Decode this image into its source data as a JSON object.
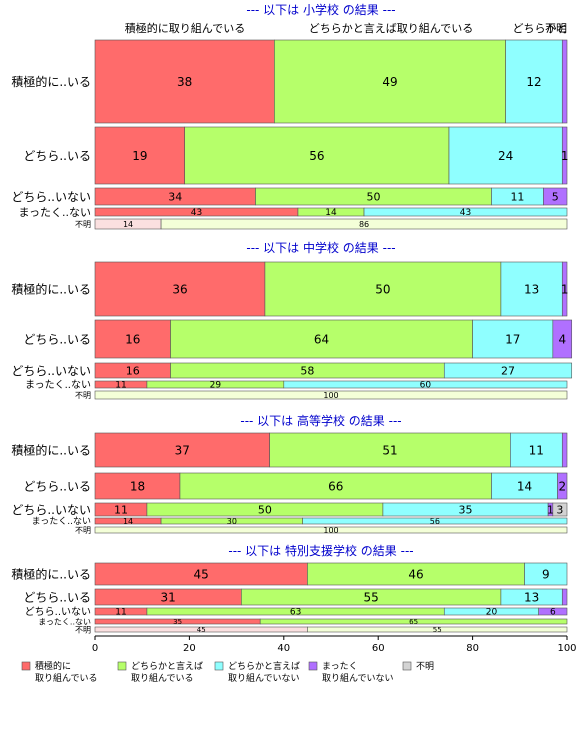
{
  "chart_data": {
    "type": "bar",
    "orientation": "horizontal",
    "stacked": "percent",
    "xlim": [
      0,
      100
    ],
    "xticks": [
      "0",
      "20",
      "40",
      "60",
      "80",
      "100"
    ],
    "column_headers": [
      "積極的に取り組んでいる",
      "どちらかと言えば取り組んでいる",
      "どちらかと",
      "不明"
    ],
    "legend": {
      "position": "bottom-left",
      "items": [
        {
          "label_lines": [
            "積極的に",
            "取り組んでいる"
          ],
          "color": "#ff6b6b"
        },
        {
          "label_lines": [
            "どちらかと言えば",
            "取り組んでいる"
          ],
          "color": "#b6ff6a"
        },
        {
          "label_lines": [
            "どちらかと言えば",
            "取り組んでいない"
          ],
          "color": "#8fffff"
        },
        {
          "label_lines": [
            "まったく",
            "取り組んでいない"
          ],
          "color": "#b070ff"
        },
        {
          "label_lines": [
            "不明"
          ],
          "color": "#d3d3d3"
        }
      ]
    },
    "panels": [
      {
        "title": "--- 以下は 小学校 の結果 ---",
        "rows": [
          {
            "label": "積極的に..いる",
            "values": [
              38,
              49,
              12,
              1,
              0
            ],
            "labels": [
              "38",
              "49",
              "12",
              "",
              ""
            ]
          },
          {
            "label": "どちら..いる",
            "values": [
              19,
              56,
              24,
              1,
              0
            ],
            "labels": [
              "19",
              "56",
              "24",
              "1",
              ""
            ]
          },
          {
            "label": "どちら..いない",
            "values": [
              34,
              50,
              11,
              5,
              0
            ],
            "labels": [
              "34",
              "50",
              "11",
              "5",
              ""
            ]
          },
          {
            "label": "まったく..ない",
            "values": [
              43,
              14,
              43,
              0,
              0
            ],
            "labels": [
              "43",
              "14",
              "43",
              "",
              ""
            ]
          },
          {
            "label": "不明",
            "values": [
              14,
              86,
              0,
              0,
              0
            ],
            "labels": [
              "14",
              "86",
              "",
              "",
              ""
            ],
            "pale": true
          }
        ]
      },
      {
        "title": "--- 以下は 中学校 の結果 ---",
        "rows": [
          {
            "label": "積極的に..いる",
            "values": [
              36,
              50,
              13,
              1,
              0
            ],
            "labels": [
              "36",
              "50",
              "13",
              "1",
              ""
            ]
          },
          {
            "label": "どちら..いる",
            "values": [
              16,
              64,
              17,
              4,
              0
            ],
            "labels": [
              "16",
              "64",
              "17",
              "4",
              ""
            ]
          },
          {
            "label": "どちら..いない",
            "values": [
              16,
              58,
              27,
              0,
              0
            ],
            "labels": [
              "16",
              "58",
              "27",
              "",
              ""
            ]
          },
          {
            "label": "まったく..ない",
            "values": [
              11,
              29,
              60,
              0,
              0
            ],
            "labels": [
              "11",
              "29",
              "60",
              "",
              ""
            ]
          },
          {
            "label": "不明",
            "values": [
              0,
              100,
              0,
              0,
              0
            ],
            "labels": [
              "",
              "100",
              "",
              "",
              ""
            ],
            "pale": true
          }
        ]
      },
      {
        "title": "--- 以下は 高等学校 の結果 ---",
        "rows": [
          {
            "label": "積極的に..いる",
            "values": [
              37,
              51,
              11,
              1,
              0
            ],
            "labels": [
              "37",
              "51",
              "11",
              "",
              ""
            ]
          },
          {
            "label": "どちら..いる",
            "values": [
              18,
              66,
              14,
              2,
              0
            ],
            "labels": [
              "18",
              "66",
              "14",
              "2",
              ""
            ]
          },
          {
            "label": "どちら..いない",
            "values": [
              11,
              50,
              35,
              1,
              3
            ],
            "labels": [
              "11",
              "50",
              "35",
              "1",
              "3"
            ]
          },
          {
            "label": "まったく..ない",
            "values": [
              14,
              30,
              56,
              0,
              0
            ],
            "labels": [
              "14",
              "30",
              "56",
              "",
              ""
            ]
          },
          {
            "label": "不明",
            "values": [
              0,
              100,
              0,
              0,
              0
            ],
            "labels": [
              "",
              "100",
              "",
              "",
              ""
            ],
            "pale": true
          }
        ]
      },
      {
        "title": "--- 以下は 特別支援学校 の結果 ---",
        "rows": [
          {
            "label": "積極的に..いる",
            "values": [
              45,
              46,
              9,
              0,
              0
            ],
            "labels": [
              "45",
              "46",
              "9",
              "",
              ""
            ]
          },
          {
            "label": "どちら..いる",
            "values": [
              31,
              55,
              13,
              1,
              0
            ],
            "labels": [
              "31",
              "55",
              "13",
              "",
              ""
            ]
          },
          {
            "label": "どちら..いない",
            "values": [
              11,
              63,
              20,
              6,
              0
            ],
            "labels": [
              "11",
              "63",
              "20",
              "6",
              ""
            ]
          },
          {
            "label": "まったく..ない",
            "values": [
              35,
              65,
              0,
              0,
              0
            ],
            "labels": [
              "35",
              "65",
              "",
              "",
              ""
            ]
          },
          {
            "label": "不明",
            "values": [
              45,
              55,
              0,
              0,
              0
            ],
            "labels": [
              "45",
              "55",
              "",
              "",
              ""
            ],
            "pale": true
          }
        ]
      }
    ]
  }
}
